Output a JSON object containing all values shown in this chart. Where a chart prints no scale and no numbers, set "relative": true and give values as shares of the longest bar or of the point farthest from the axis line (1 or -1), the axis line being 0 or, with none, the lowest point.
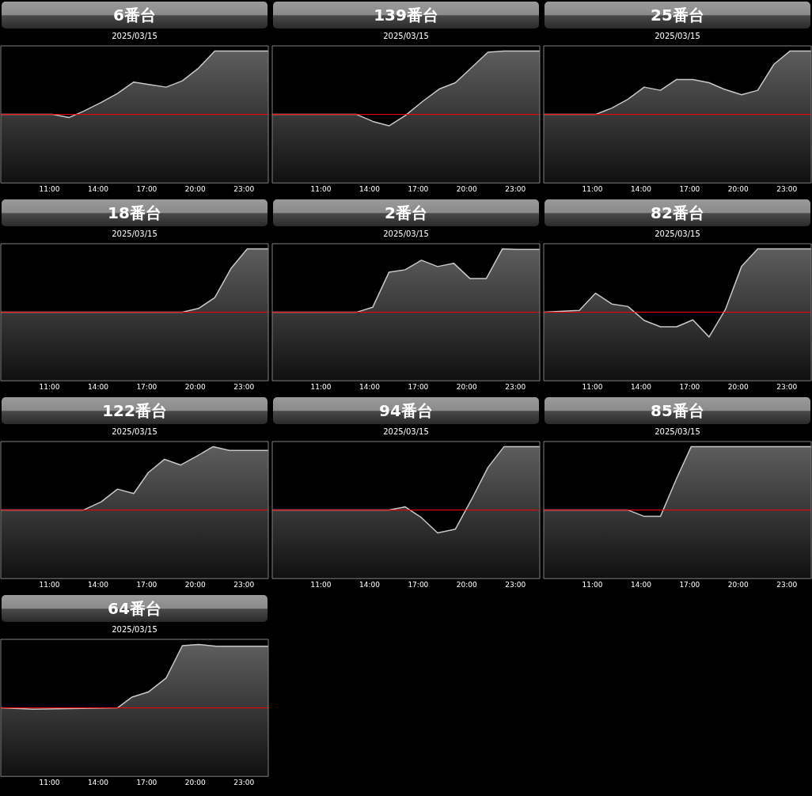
{
  "chart_data": [
    {
      "type": "area",
      "title": "6番台",
      "subtitle": "2025/03/15",
      "relative": true,
      "color": "#c8c8c8",
      "xlim": [
        8,
        24.5
      ],
      "xticks": [
        {
          "value": 11,
          "label": "11:00"
        },
        {
          "value": 14,
          "label": "14:00"
        },
        {
          "value": 17,
          "label": "17:00"
        },
        {
          "value": 20,
          "label": "20:00"
        },
        {
          "value": 23,
          "label": "23:00"
        }
      ],
      "ref_lines": [
        {
          "axis": "y",
          "value": 0,
          "color": "#ff0000"
        }
      ],
      "x": [
        8,
        11.2,
        12.2,
        13.1,
        14.2,
        15.2,
        16.2,
        17.2,
        18.2,
        19.2,
        20.2,
        21.2,
        24.5
      ],
      "values": [
        0,
        0,
        -0.05,
        0.05,
        0.19,
        0.33,
        0.51,
        0.47,
        0.43,
        0.53,
        0.73,
        1,
        1
      ]
    },
    {
      "type": "area",
      "title": "139番台",
      "subtitle": "2025/03/15",
      "relative": true,
      "color": "#c8c8c8",
      "xlim": [
        8,
        24.5
      ],
      "xticks": [
        {
          "value": 11,
          "label": "11:00"
        },
        {
          "value": 14,
          "label": "14:00"
        },
        {
          "value": 17,
          "label": "17:00"
        },
        {
          "value": 20,
          "label": "20:00"
        },
        {
          "value": 23,
          "label": "23:00"
        }
      ],
      "ref_lines": [
        {
          "axis": "y",
          "value": 0,
          "color": "#ff0000"
        }
      ],
      "x": [
        8,
        13.2,
        14.2,
        15.2,
        16.2,
        17.3,
        18.3,
        19.3,
        20.3,
        21.3,
        22.3,
        24.5
      ],
      "values": [
        0,
        0,
        -0.11,
        -0.18,
        -0.02,
        0.21,
        0.4,
        0.5,
        0.74,
        0.98,
        1,
        1
      ]
    },
    {
      "type": "area",
      "title": "25番台",
      "subtitle": "2025/03/15",
      "relative": true,
      "color": "#c8c8c8",
      "xlim": [
        8,
        24.5
      ],
      "xticks": [
        {
          "value": 11,
          "label": "11:00"
        },
        {
          "value": 14,
          "label": "14:00"
        },
        {
          "value": 17,
          "label": "17:00"
        },
        {
          "value": 20,
          "label": "20:00"
        },
        {
          "value": 23,
          "label": "23:00"
        }
      ],
      "ref_lines": [
        {
          "axis": "y",
          "value": 0,
          "color": "#ff0000"
        }
      ],
      "x": [
        8,
        11.2,
        12.2,
        13.2,
        14.2,
        15.2,
        16.2,
        17.2,
        18.2,
        19.1,
        20.2,
        21.2,
        22.2,
        23.2,
        24.5
      ],
      "values": [
        0,
        0,
        0.1,
        0.24,
        0.43,
        0.38,
        0.55,
        0.55,
        0.5,
        0.4,
        0.31,
        0.38,
        0.79,
        1,
        1
      ]
    },
    {
      "type": "area",
      "title": "18番台",
      "subtitle": "2025/03/15",
      "relative": true,
      "color": "#c8c8c8",
      "xlim": [
        8,
        24.5
      ],
      "xticks": [
        {
          "value": 11,
          "label": "11:00"
        },
        {
          "value": 14,
          "label": "14:00"
        },
        {
          "value": 17,
          "label": "17:00"
        },
        {
          "value": 20,
          "label": "20:00"
        },
        {
          "value": 23,
          "label": "23:00"
        }
      ],
      "ref_lines": [
        {
          "axis": "y",
          "value": 0,
          "color": "#ff0000"
        }
      ],
      "x": [
        8,
        19.2,
        20.2,
        21.2,
        22.2,
        23.2,
        24.5
      ],
      "values": [
        0,
        0,
        0.06,
        0.23,
        0.69,
        1,
        1
      ]
    },
    {
      "type": "area",
      "title": "2番台",
      "subtitle": "2025/03/15",
      "relative": true,
      "color": "#c8c8c8",
      "xlim": [
        8,
        24.5
      ],
      "xticks": [
        {
          "value": 11,
          "label": "11:00"
        },
        {
          "value": 14,
          "label": "14:00"
        },
        {
          "value": 17,
          "label": "17:00"
        },
        {
          "value": 20,
          "label": "20:00"
        },
        {
          "value": 23,
          "label": "23:00"
        }
      ],
      "ref_lines": [
        {
          "axis": "y",
          "value": 0,
          "color": "#ff0000"
        }
      ],
      "x": [
        8,
        13.2,
        14.2,
        15.2,
        16.2,
        17.2,
        18.2,
        19.2,
        20.2,
        21.2,
        22.2,
        23.1,
        24.5
      ],
      "values": [
        0,
        0,
        0.08,
        0.63,
        0.67,
        0.82,
        0.72,
        0.77,
        0.53,
        0.53,
        1,
        0.99,
        0.99
      ]
    },
    {
      "type": "area",
      "title": "82番台",
      "subtitle": "2025/03/15",
      "relative": true,
      "color": "#c8c8c8",
      "xlim": [
        8,
        24.5
      ],
      "xticks": [
        {
          "value": 11,
          "label": "11:00"
        },
        {
          "value": 14,
          "label": "14:00"
        },
        {
          "value": 17,
          "label": "17:00"
        },
        {
          "value": 20,
          "label": "20:00"
        },
        {
          "value": 23,
          "label": "23:00"
        }
      ],
      "ref_lines": [
        {
          "axis": "y",
          "value": 0,
          "color": "#ff0000"
        }
      ],
      "x": [
        8,
        10.2,
        11.2,
        12.2,
        13.2,
        14.2,
        15.2,
        16.2,
        17.2,
        18.2,
        19.2,
        20.2,
        21.2,
        24.5
      ],
      "values": [
        0,
        0.03,
        0.3,
        0.13,
        0.09,
        -0.13,
        -0.23,
        -0.23,
        -0.12,
        -0.39,
        0.04,
        0.72,
        1,
        1
      ]
    },
    {
      "type": "area",
      "title": "122番台",
      "subtitle": "2025/03/15",
      "relative": true,
      "color": "#c8c8c8",
      "xlim": [
        8,
        24.5
      ],
      "xticks": [
        {
          "value": 11,
          "label": "11:00"
        },
        {
          "value": 14,
          "label": "14:00"
        },
        {
          "value": 17,
          "label": "17:00"
        },
        {
          "value": 20,
          "label": "20:00"
        },
        {
          "value": 23,
          "label": "23:00"
        }
      ],
      "ref_lines": [
        {
          "axis": "y",
          "value": 0,
          "color": "#ff0000"
        }
      ],
      "x": [
        8,
        13.1,
        14.2,
        15.2,
        16.2,
        17.1,
        18.1,
        19.1,
        20.1,
        21.1,
        22.1,
        24.5
      ],
      "values": [
        0,
        0,
        0.13,
        0.33,
        0.26,
        0.59,
        0.8,
        0.71,
        0.85,
        1,
        0.94,
        0.94
      ]
    },
    {
      "type": "area",
      "title": "94番台",
      "subtitle": "2025/03/15",
      "relative": true,
      "color": "#c8c8c8",
      "xlim": [
        8,
        24.5
      ],
      "xticks": [
        {
          "value": 11,
          "label": "11:00"
        },
        {
          "value": 14,
          "label": "14:00"
        },
        {
          "value": 17,
          "label": "17:00"
        },
        {
          "value": 20,
          "label": "20:00"
        },
        {
          "value": 23,
          "label": "23:00"
        }
      ],
      "ref_lines": [
        {
          "axis": "y",
          "value": 0,
          "color": "#ff0000"
        }
      ],
      "x": [
        8,
        15.2,
        16.2,
        17.2,
        18.2,
        19.3,
        20.3,
        21.3,
        22.3,
        24.5
      ],
      "values": [
        0,
        0,
        0.05,
        -0.12,
        -0.36,
        -0.3,
        0.17,
        0.67,
        1,
        1
      ]
    },
    {
      "type": "area",
      "title": "85番台",
      "subtitle": "2025/03/15",
      "relative": true,
      "color": "#c8c8c8",
      "xlim": [
        8,
        24.5
      ],
      "xticks": [
        {
          "value": 11,
          "label": "11:00"
        },
        {
          "value": 14,
          "label": "14:00"
        },
        {
          "value": 17,
          "label": "17:00"
        },
        {
          "value": 20,
          "label": "20:00"
        },
        {
          "value": 23,
          "label": "23:00"
        }
      ],
      "ref_lines": [
        {
          "axis": "y",
          "value": 0,
          "color": "#ff0000"
        }
      ],
      "x": [
        8,
        13.2,
        14.2,
        15.2,
        16.2,
        17.1,
        24.5
      ],
      "values": [
        0,
        0,
        -0.1,
        -0.1,
        0.5,
        1,
        1
      ]
    },
    {
      "type": "area",
      "title": "64番台",
      "subtitle": "2025/03/15",
      "relative": true,
      "color": "#c8c8c8",
      "xlim": [
        8,
        24.5
      ],
      "xticks": [
        {
          "value": 11,
          "label": "11:00"
        },
        {
          "value": 14,
          "label": "14:00"
        },
        {
          "value": 17,
          "label": "17:00"
        },
        {
          "value": 20,
          "label": "20:00"
        },
        {
          "value": 23,
          "label": "23:00"
        }
      ],
      "ref_lines": [
        {
          "axis": "y",
          "value": 0,
          "color": "#ff0000"
        }
      ],
      "x": [
        8,
        10,
        15.2,
        16.1,
        17.1,
        18.2,
        19.2,
        20.2,
        21.3,
        24.5
      ],
      "values": [
        0,
        -0.02,
        0,
        0.17,
        0.25,
        0.47,
        0.98,
        1,
        0.97,
        0.97
      ]
    }
  ]
}
